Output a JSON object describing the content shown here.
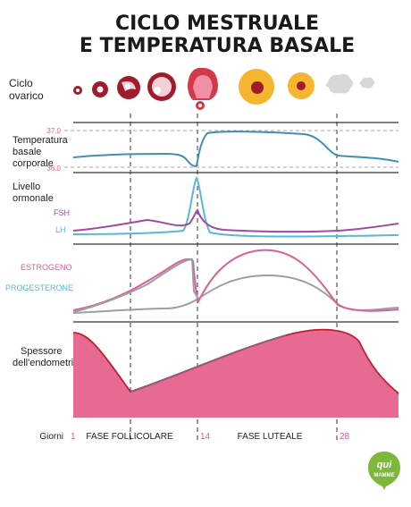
{
  "title": {
    "line1": "CICLO MESTRUALE",
    "line2": "E TEMPERATURA BASALE"
  },
  "sections": {
    "ovarian": "Ciclo\novarico",
    "temperature": "Temperatura\nbasale\ncorporale",
    "hormones": "Livello\normonale",
    "endometrium": "Spessore\ndell'endometrio"
  },
  "temperature_ticks": {
    "high": "37.0",
    "low": "36.0"
  },
  "hormone_labels": {
    "fsh": "FSH",
    "lh": "LH"
  },
  "steroid_labels": {
    "estrogen": "ESTROGENO",
    "progesterone": "PROGESTERONE"
  },
  "timeline": {
    "label": "Giorni",
    "day_start": "1",
    "phase1": "FASE FOLLICOLARE",
    "day_mid": "14",
    "phase2": "FASE LUTEALE",
    "day_end": "28"
  },
  "logo": {
    "line1": "qui",
    "line2": "MAMME"
  },
  "colors": {
    "temperature_line": "#3f8fb5",
    "fsh": "#a04aa8",
    "lh": "#5ab8d6",
    "estrogen": "#d9609a",
    "progesterone": "#9aa0a4",
    "endometrium_fill": "#e66a92",
    "endometrium_edge": "#c0202e",
    "follicle": "#a01c2c",
    "corpus_luteum": "#f5b531",
    "logo_green": "#7db83a"
  }
}
